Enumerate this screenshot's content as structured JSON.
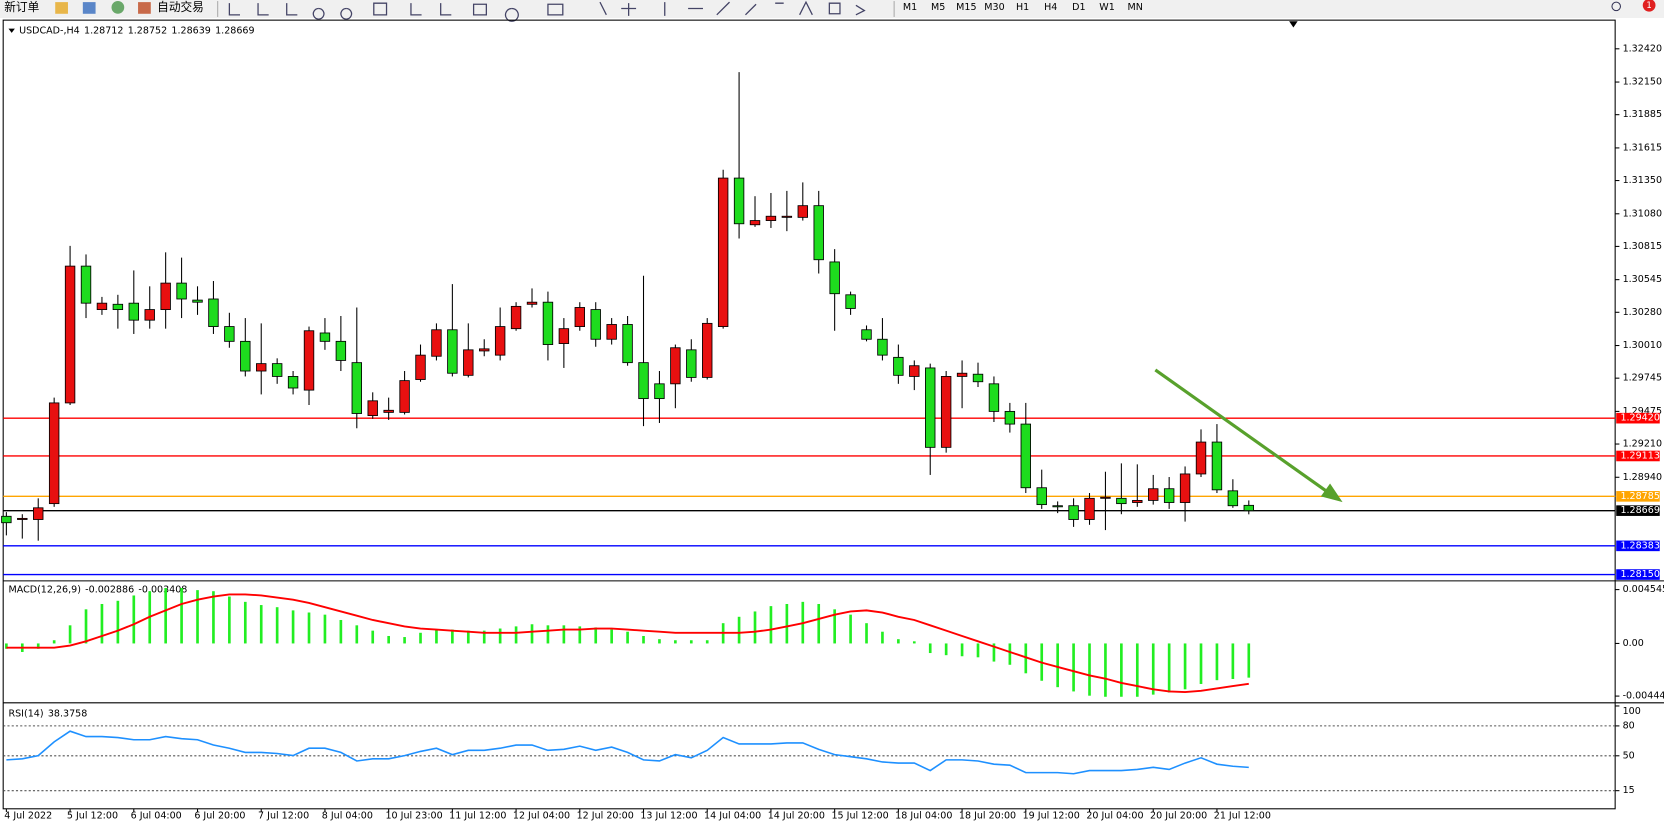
{
  "toolbar": {
    "new_order": "新订单",
    "auto_trading": "自动交易",
    "timeframes": [
      "M1",
      "M5",
      "M15",
      "M30",
      "H1",
      "H4",
      "D1",
      "W1",
      "MN"
    ],
    "badge": "1"
  },
  "chart_data": [
    {
      "type": "candlestick",
      "symbol": "USDCAD-,H4",
      "up_color": "#e81010",
      "down_color": "#1edc1e",
      "categories": [
        "4 Jul 2022",
        null,
        null,
        null,
        "5 Jul 12:00",
        null,
        null,
        null,
        "6 Jul 04:00",
        null,
        null,
        null,
        "6 Jul 20:00",
        null,
        null,
        null,
        "7 Jul 12:00",
        null,
        null,
        null,
        "8 Jul 04:00",
        null,
        null,
        null,
        "10 Jul 23:00",
        null,
        null,
        null,
        "11 Jul 12:00",
        null,
        null,
        null,
        "12 Jul 04:00",
        null,
        null,
        null,
        "12 Jul 20:00",
        null,
        null,
        null,
        "13 Jul 12:00",
        null,
        null,
        null,
        "14 Jul 04:00",
        null,
        null,
        null,
        "14 Jul 20:00",
        null,
        null,
        null,
        "15 Jul 12:00",
        null,
        null,
        null,
        "18 Jul 04:00",
        null,
        null,
        null,
        "18 Jul 20:00",
        null,
        null,
        null,
        "19 Jul 12:00",
        null,
        null,
        null,
        "20 Jul 04:00",
        null,
        null,
        null,
        "20 Jul 20:00",
        null,
        null,
        null,
        "21 Jul 12:00",
        null,
        null
      ],
      "ohlc": [
        [
          1.28623,
          1.28657,
          1.28468,
          1.28571
        ],
        [
          1.28597,
          1.2864,
          1.28442,
          1.28606
        ],
        [
          1.28597,
          1.28769,
          1.28425,
          1.28692
        ],
        [
          1.28726,
          1.29587,
          1.287,
          1.29544
        ],
        [
          1.29544,
          1.30819,
          1.29527,
          1.30655
        ],
        [
          1.30655,
          1.3075,
          1.30233,
          1.30354
        ],
        [
          1.30302,
          1.30405,
          1.30259,
          1.30354
        ],
        [
          1.30345,
          1.30422,
          1.30147,
          1.30302
        ],
        [
          1.30354,
          1.3062,
          1.30104,
          1.30216
        ],
        [
          1.30216,
          1.30491,
          1.30147,
          1.30302
        ],
        [
          1.30302,
          1.30767,
          1.30147,
          1.30517
        ],
        [
          1.30517,
          1.30724,
          1.30233,
          1.30388
        ],
        [
          1.30379,
          1.30491,
          1.30259,
          1.30362
        ],
        [
          1.30388,
          1.30534,
          1.30104,
          1.30164
        ],
        [
          1.30164,
          1.30276,
          1.29992,
          1.30044
        ],
        [
          1.30044,
          1.30233,
          1.29759,
          1.29803
        ],
        [
          1.29803,
          1.3019,
          1.29613,
          1.29863
        ],
        [
          1.29863,
          1.29906,
          1.29699,
          1.29759
        ],
        [
          1.29759,
          1.29803,
          1.29613,
          1.29665
        ],
        [
          1.29648,
          1.30164,
          1.29527,
          1.3013
        ],
        [
          1.30112,
          1.30233,
          1.29975,
          1.30044
        ],
        [
          1.30044,
          1.3025,
          1.29803,
          1.29889
        ],
        [
          1.29871,
          1.30319,
          1.29338,
          1.29458
        ],
        [
          1.29441,
          1.2963,
          1.29415,
          1.29561
        ],
        [
          1.29467,
          1.29587,
          1.29406,
          1.29484
        ],
        [
          1.29467,
          1.29803,
          1.2945,
          1.29725
        ],
        [
          1.29734,
          1.30018,
          1.29716,
          1.29932
        ],
        [
          1.29923,
          1.3019,
          1.29889,
          1.30138
        ],
        [
          1.30138,
          1.30509,
          1.29759,
          1.29785
        ],
        [
          1.29768,
          1.3019,
          1.29751,
          1.29975
        ],
        [
          1.29966,
          1.30061,
          1.29923,
          1.29983
        ],
        [
          1.29932,
          1.30319,
          1.29889,
          1.30164
        ],
        [
          1.30147,
          1.30362,
          1.3013,
          1.30328
        ],
        [
          1.30345,
          1.30474,
          1.30319,
          1.30362
        ],
        [
          1.30362,
          1.30448,
          1.29889,
          1.30018
        ],
        [
          1.30026,
          1.30233,
          1.29828,
          1.30147
        ],
        [
          1.30164,
          1.30362,
          1.3013,
          1.30319
        ],
        [
          1.30302,
          1.30362,
          1.3,
          1.30061
        ],
        [
          1.30061,
          1.30233,
          1.30018,
          1.30181
        ],
        [
          1.30181,
          1.3025,
          1.29846,
          1.29871
        ],
        [
          1.29871,
          1.30577,
          1.29355,
          1.29579
        ],
        [
          1.29699,
          1.29803,
          1.29381,
          1.29579
        ],
        [
          1.29699,
          1.30018,
          1.29501,
          1.29992
        ],
        [
          1.29975,
          1.30061,
          1.29716,
          1.29751
        ],
        [
          1.29751,
          1.30233,
          1.29734,
          1.3019
        ],
        [
          1.30164,
          1.31438,
          1.30147,
          1.3137
        ],
        [
          1.3137,
          1.32231,
          1.30879,
          1.30999
        ],
        [
          1.30991,
          1.31223,
          1.30974,
          1.31025
        ],
        [
          1.31025,
          1.31249,
          1.30965,
          1.3106
        ],
        [
          1.31051,
          1.31266,
          1.30939,
          1.3106
        ],
        [
          1.31051,
          1.31335,
          1.31025,
          1.31146
        ],
        [
          1.31146,
          1.31266,
          1.30595,
          1.30707
        ],
        [
          1.30689,
          1.30793,
          1.3013,
          1.30431
        ],
        [
          1.30422,
          1.30448,
          1.30259,
          1.30311
        ],
        [
          1.30138,
          1.30173,
          1.30044,
          1.30061
        ],
        [
          1.30061,
          1.30233,
          1.29889,
          1.29932
        ],
        [
          1.29914,
          1.30018,
          1.29699,
          1.29768
        ],
        [
          1.29759,
          1.29889,
          1.29648,
          1.29846
        ],
        [
          1.29828,
          1.29863,
          1.28959,
          1.29183
        ],
        [
          1.29183,
          1.29803,
          1.2914,
          1.29759
        ],
        [
          1.29759,
          1.29889,
          1.29501,
          1.29785
        ],
        [
          1.29777,
          1.29871,
          1.29673,
          1.29716
        ],
        [
          1.29699,
          1.29759,
          1.29389,
          1.29475
        ],
        [
          1.29475,
          1.29544,
          1.29303,
          1.29372
        ],
        [
          1.29372,
          1.29544,
          1.28812,
          1.28855
        ],
        [
          1.28855,
          1.29002,
          1.28683,
          1.28718
        ],
        [
          1.28709,
          1.28744,
          1.28649,
          1.287
        ],
        [
          1.28709,
          1.28769,
          1.28537,
          1.28597
        ],
        [
          1.28597,
          1.28812,
          1.28554,
          1.28769
        ],
        [
          1.28769,
          1.28985,
          1.28511,
          1.28778
        ],
        [
          1.28769,
          1.29053,
          1.2864,
          1.28726
        ],
        [
          1.28735,
          1.29045,
          1.287,
          1.28752
        ],
        [
          1.28752,
          1.28959,
          1.28718,
          1.28847
        ],
        [
          1.28847,
          1.28942,
          1.28683,
          1.28735
        ],
        [
          1.28735,
          1.29028,
          1.2858,
          1.28967
        ],
        [
          1.28967,
          1.29329,
          1.28942,
          1.29226
        ],
        [
          1.29226,
          1.29372,
          1.28812,
          1.28838
        ],
        [
          1.2883,
          1.28924,
          1.28692,
          1.28709
        ],
        [
          1.28712,
          1.28752,
          1.28639,
          1.28669
        ]
      ],
      "ylim": [
        1.28107,
        1.32627
      ],
      "yticks": [
        {
          "value": 1.3242,
          "label": "1.32420"
        },
        {
          "value": 1.3215,
          "label": "1.32150"
        },
        {
          "value": 1.31885,
          "label": "1.31885"
        },
        {
          "value": 1.31615,
          "label": "1.31615"
        },
        {
          "value": 1.3135,
          "label": "1.31350"
        },
        {
          "value": 1.3108,
          "label": "1.31080"
        },
        {
          "value": 1.30815,
          "label": "1.30815"
        },
        {
          "value": 1.30545,
          "label": "1.30545"
        },
        {
          "value": 1.3028,
          "label": "1.30280"
        },
        {
          "value": 1.3001,
          "label": "1.30010"
        },
        {
          "value": 1.29745,
          "label": "1.29745"
        },
        {
          "value": 1.29475,
          "label": "1.29475"
        },
        {
          "value": 1.2921,
          "label": "1.29210"
        },
        {
          "value": 1.2894,
          "label": "1.28940"
        }
      ],
      "lines": [
        {
          "value": 1.2942,
          "label": "1.29420",
          "color": "#ff0000"
        },
        {
          "value": 1.29113,
          "label": "1.29113",
          "color": "#ff0000"
        },
        {
          "value": 1.28785,
          "label": "1.28785",
          "color": "#ffa500"
        },
        {
          "value": 1.28669,
          "label": "1.28669",
          "color": "#000000"
        },
        {
          "value": 1.28383,
          "label": "1.28383",
          "color": "#0000ff"
        },
        {
          "value": 1.2815,
          "label": "1.28150",
          "color": "#0000ff"
        }
      ]
    },
    {
      "type": "macd",
      "title": "MACD(12,26,9)",
      "ylim": [
        -0.00492,
        0.00519
      ],
      "yticks": [
        0.004545,
        {
          "value": 0,
          "label": "0.00"
        },
        -0.004443
      ],
      "series": [
        {
          "style": "bar",
          "color": "#22ee22",
          "values": [
            -0.00045,
            -0.00072,
            -0.00045,
            0.00027,
            0.00153,
            0.00288,
            0.00333,
            0.0036,
            0.00405,
            0.00441,
            0.00468,
            0.00468,
            0.0045,
            0.00441,
            0.00396,
            0.00351,
            0.00324,
            0.00306,
            0.00279,
            0.00261,
            0.00243,
            0.00198,
            0.00153,
            0.00108,
            0.00063,
            0.00054,
            0.0009,
            0.00117,
            0.00117,
            0.00108,
            0.00108,
            0.00126,
            0.00144,
            0.00162,
            0.00153,
            0.00153,
            0.00144,
            0.00135,
            0.00117,
            0.00099,
            0.00063,
            0.00036,
            0.00027,
            0.00027,
            0.00027,
            0.00171,
            0.00225,
            0.0027,
            0.00315,
            0.00333,
            0.00351,
            0.00333,
            0.00288,
            0.00243,
            0.00171,
            0.00099,
            0.00036,
            0.00018,
            -0.00081,
            -0.00099,
            -0.00108,
            -0.00117,
            -0.00153,
            -0.0018,
            -0.00252,
            -0.00315,
            -0.00369,
            -0.00405,
            -0.00441,
            -0.0045,
            -0.0045,
            -0.0045,
            -0.00432,
            -0.00414,
            -0.00387,
            -0.00342,
            -0.0031,
            -0.003,
            -0.002886
          ]
        },
        {
          "style": "line",
          "color": "#ff0000",
          "values": [
            -0.00036,
            -0.00036,
            -0.00036,
            -0.00036,
            -0.00018,
            0.00018,
            0.00063,
            0.00108,
            0.00162,
            0.00225,
            0.00279,
            0.00333,
            0.00369,
            0.00396,
            0.00414,
            0.00414,
            0.00405,
            0.00387,
            0.00369,
            0.00342,
            0.00306,
            0.0027,
            0.00234,
            0.00198,
            0.00171,
            0.00144,
            0.00126,
            0.00117,
            0.00108,
            0.00099,
            0.0009,
            0.0009,
            0.0009,
            0.00099,
            0.00108,
            0.00117,
            0.00117,
            0.00126,
            0.00126,
            0.00117,
            0.00108,
            0.00099,
            0.0009,
            0.0009,
            0.0009,
            0.0009,
            0.0009,
            0.00099,
            0.00117,
            0.00144,
            0.00171,
            0.00207,
            0.00243,
            0.0027,
            0.00279,
            0.00261,
            0.00225,
            0.00198,
            0.00153,
            0.00108,
            0.00063,
            0.00018,
            -0.00027,
            -0.00072,
            -0.00117,
            -0.00162,
            -0.00198,
            -0.00234,
            -0.0027,
            -0.00297,
            -0.00333,
            -0.0036,
            -0.00387,
            -0.00405,
            -0.0041,
            -0.004,
            -0.0038,
            -0.0036,
            -0.003408
          ]
        }
      ]
    },
    {
      "type": "line",
      "title": "RSI(14)",
      "color": "#1e90ff",
      "ylim": [
        0,
        100
      ],
      "yticks": [
        100,
        80,
        50,
        15
      ],
      "values": [
        45.9,
        47.0,
        50.2,
        64.0,
        74.7,
        69.3,
        69.3,
        68.3,
        66.1,
        66.1,
        69.3,
        67.2,
        66.1,
        60.8,
        57.6,
        53.4,
        53.4,
        52.3,
        50.2,
        57.6,
        57.6,
        53.4,
        44.8,
        47.0,
        47.0,
        50.2,
        54.4,
        57.6,
        51.2,
        55.5,
        55.5,
        57.6,
        60.8,
        60.8,
        55.5,
        56.5,
        59.7,
        55.5,
        58.7,
        53.4,
        45.9,
        44.8,
        51.2,
        48.0,
        55.5,
        68.3,
        61.9,
        61.9,
        61.9,
        62.9,
        62.9,
        56.5,
        51.2,
        49.1,
        47.0,
        43.8,
        42.7,
        42.7,
        35.2,
        45.9,
        45.9,
        44.8,
        41.6,
        40.6,
        33.1,
        33.1,
        33.1,
        32.0,
        35.2,
        35.2,
        35.2,
        36.3,
        38.4,
        36.3,
        42.7,
        48.0,
        41.6,
        39.5,
        38.3758
      ]
    }
  ]
}
